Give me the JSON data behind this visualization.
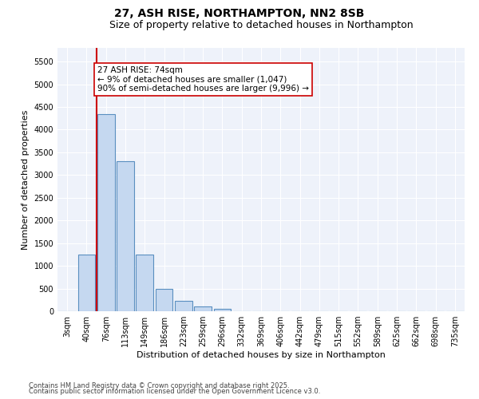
{
  "title1": "27, ASH RISE, NORTHAMPTON, NN2 8SB",
  "title2": "Size of property relative to detached houses in Northampton",
  "xlabel": "Distribution of detached houses by size in Northampton",
  "ylabel": "Number of detached properties",
  "categories": [
    "3sqm",
    "40sqm",
    "76sqm",
    "113sqm",
    "149sqm",
    "186sqm",
    "223sqm",
    "259sqm",
    "296sqm",
    "332sqm",
    "369sqm",
    "406sqm",
    "442sqm",
    "479sqm",
    "515sqm",
    "552sqm",
    "589sqm",
    "625sqm",
    "662sqm",
    "698sqm",
    "735sqm"
  ],
  "values": [
    0,
    1250,
    4350,
    3300,
    1250,
    500,
    220,
    100,
    60,
    0,
    0,
    0,
    0,
    0,
    0,
    0,
    0,
    0,
    0,
    0,
    0
  ],
  "bar_color": "#c5d8f0",
  "bar_edge_color": "#5a8fc0",
  "vline_color": "#cc0000",
  "annotation_text": "27 ASH RISE: 74sqm\n← 9% of detached houses are smaller (1,047)\n90% of semi-detached houses are larger (9,996) →",
  "annotation_box_color": "#ffffff",
  "annotation_box_edge": "#cc0000",
  "ylim": [
    0,
    5800
  ],
  "yticks": [
    0,
    500,
    1000,
    1500,
    2000,
    2500,
    3000,
    3500,
    4000,
    4500,
    5000,
    5500
  ],
  "bg_color": "#eef2fa",
  "footer1": "Contains HM Land Registry data © Crown copyright and database right 2025.",
  "footer2": "Contains public sector information licensed under the Open Government Licence v3.0.",
  "title_fontsize": 10,
  "subtitle_fontsize": 9,
  "axis_fontsize": 8,
  "tick_fontsize": 7,
  "annotation_fontsize": 7.5
}
